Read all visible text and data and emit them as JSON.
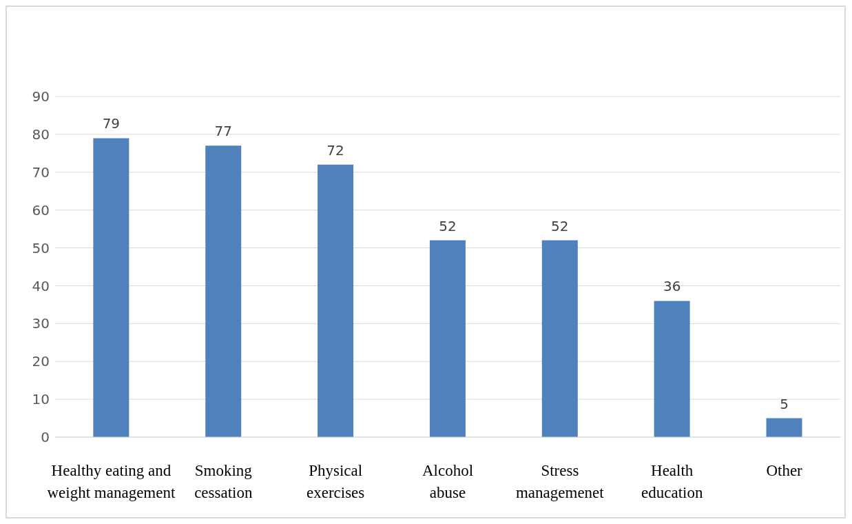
{
  "chart_data": {
    "type": "bar",
    "categories": [
      "Healthy eating and weight management",
      "Smoking cessation",
      "Physical exercises",
      "Alcohol abuse",
      "Stress managemenet",
      "Health education",
      "Other"
    ],
    "values": [
      79,
      77,
      72,
      52,
      52,
      36,
      5
    ],
    "color": "#4f81bd",
    "ylim": [
      0,
      90
    ],
    "yticks": [
      0,
      10,
      20,
      30,
      40,
      50,
      60,
      70,
      80,
      90
    ],
    "grid": "y",
    "data_labels": true
  }
}
